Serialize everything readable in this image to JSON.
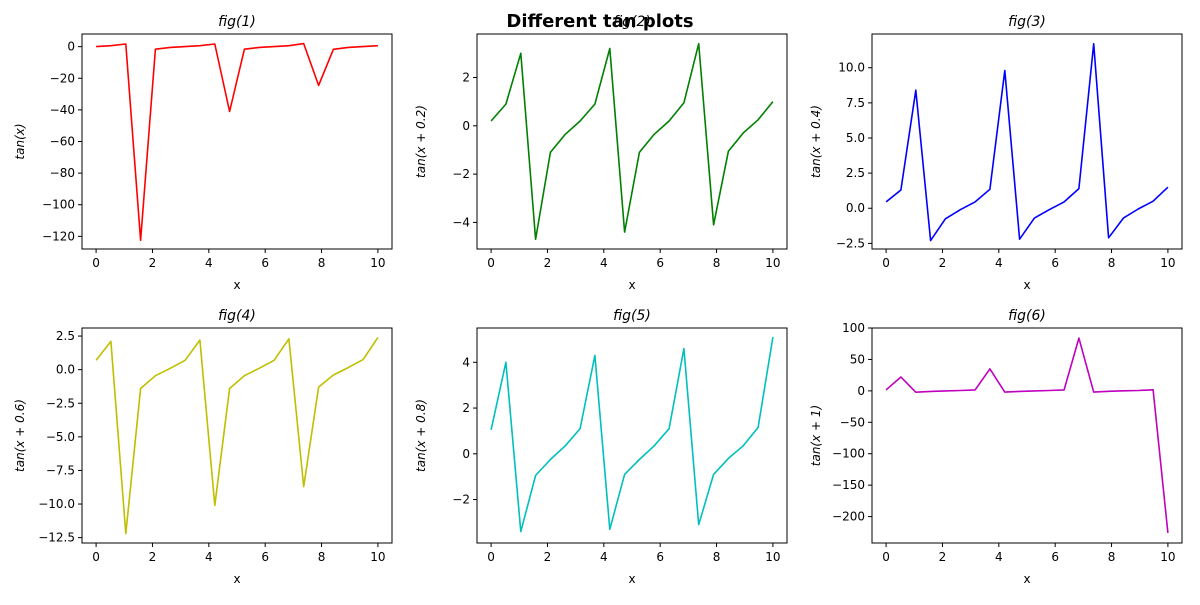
{
  "suptitle": "Different tan plots",
  "chart_data": [
    {
      "type": "line",
      "title": "fig(1)",
      "xlabel": "x",
      "ylabel": "tan(x)",
      "color": "#ff0000",
      "xlim": [
        -0.5,
        10.5
      ],
      "ylim": [
        -128,
        8
      ],
      "xticks": [
        0,
        2,
        4,
        6,
        8,
        10
      ],
      "yticks": [
        0,
        -20,
        -40,
        -60,
        -80,
        -100,
        -120
      ],
      "ytick_labels": [
        "0",
        "−20",
        "−40",
        "−60",
        "−80",
        "−100",
        "−120"
      ],
      "x": [
        0,
        0.526,
        1.053,
        1.579,
        2.105,
        2.632,
        3.158,
        3.684,
        4.211,
        4.737,
        5.263,
        5.789,
        6.316,
        6.842,
        7.368,
        7.895,
        8.421,
        8.947,
        9.474,
        10
      ],
      "y": [
        0,
        0.6,
        1.7,
        -122.5,
        -1.6,
        -0.5,
        0.0,
        0.6,
        1.7,
        -41,
        -1.6,
        -0.5,
        0.0,
        0.6,
        1.9,
        -24.5,
        -1.7,
        -0.5,
        0.0,
        0.6
      ]
    },
    {
      "type": "line",
      "title": "fig(2)",
      "xlabel": "x",
      "ylabel": "tan(x + 0.2)",
      "color": "#008000",
      "xlim": [
        -0.5,
        10.5
      ],
      "ylim": [
        -5.1,
        3.8
      ],
      "xticks": [
        0,
        2,
        4,
        6,
        8,
        10
      ],
      "yticks": [
        2,
        0,
        -2,
        -4
      ],
      "ytick_labels": [
        "2",
        "0",
        "−2",
        "−4"
      ],
      "x": [
        0,
        0.526,
        1.053,
        1.579,
        2.105,
        2.632,
        3.158,
        3.684,
        4.211,
        4.737,
        5.263,
        5.789,
        6.316,
        6.842,
        7.368,
        7.895,
        8.421,
        8.947,
        9.474,
        10
      ],
      "y": [
        0.2,
        0.9,
        3.0,
        -4.7,
        -1.1,
        -0.35,
        0.2,
        0.9,
        3.2,
        -4.4,
        -1.1,
        -0.35,
        0.2,
        0.95,
        3.4,
        -4.1,
        -1.05,
        -0.3,
        0.25,
        1.0
      ]
    },
    {
      "type": "line",
      "title": "fig(3)",
      "xlabel": "x",
      "ylabel": "tan(x + 0.4)",
      "color": "#0000ff",
      "xlim": [
        -0.5,
        10.5
      ],
      "ylim": [
        -2.9,
        12.4
      ],
      "xticks": [
        0,
        2,
        4,
        6,
        8,
        10
      ],
      "yticks": [
        10.0,
        7.5,
        5.0,
        2.5,
        0.0,
        -2.5
      ],
      "ytick_labels": [
        "10.0",
        "7.5",
        "5.0",
        "2.5",
        "0.0",
        "−2.5"
      ],
      "x": [
        0,
        0.526,
        1.053,
        1.579,
        2.105,
        2.632,
        3.158,
        3.684,
        4.211,
        4.737,
        5.263,
        5.789,
        6.316,
        6.842,
        7.368,
        7.895,
        8.421,
        8.947,
        9.474,
        10
      ],
      "y": [
        0.45,
        1.3,
        8.4,
        -2.3,
        -0.75,
        -0.1,
        0.45,
        1.35,
        9.8,
        -2.2,
        -0.7,
        -0.1,
        0.45,
        1.4,
        11.7,
        -2.1,
        -0.7,
        -0.05,
        0.5,
        1.5
      ]
    },
    {
      "type": "line",
      "title": "fig(4)",
      "xlabel": "x",
      "ylabel": "tan(x + 0.6)",
      "color": "#bfbf00",
      "xlim": [
        -0.5,
        10.5
      ],
      "ylim": [
        -12.9,
        3.1
      ],
      "xticks": [
        0,
        2,
        4,
        6,
        8,
        10
      ],
      "yticks": [
        2.5,
        0.0,
        -2.5,
        -5.0,
        -7.5,
        -10.0,
        -12.5
      ],
      "ytick_labels": [
        "2.5",
        "0.0",
        "−2.5",
        "−5.0",
        "−7.5",
        "−10.0",
        "−12.5"
      ],
      "x": [
        0,
        0.526,
        1.053,
        1.579,
        2.105,
        2.632,
        3.158,
        3.684,
        4.211,
        4.737,
        5.263,
        5.789,
        6.316,
        6.842,
        7.368,
        7.895,
        8.421,
        8.947,
        9.474,
        10
      ],
      "y": [
        0.7,
        2.1,
        -12.2,
        -1.4,
        -0.45,
        0.1,
        0.7,
        2.2,
        -10.1,
        -1.4,
        -0.45,
        0.1,
        0.7,
        2.3,
        -8.7,
        -1.3,
        -0.4,
        0.15,
        0.75,
        2.4
      ]
    },
    {
      "type": "line",
      "title": "fig(5)",
      "xlabel": "x",
      "ylabel": "tan(x + 0.8)",
      "color": "#00bfbf",
      "xlim": [
        -0.5,
        10.5
      ],
      "ylim": [
        -3.9,
        5.5
      ],
      "xticks": [
        0,
        2,
        4,
        6,
        8,
        10
      ],
      "yticks": [
        4,
        2,
        0,
        -2
      ],
      "ytick_labels": [
        "4",
        "2",
        "0",
        "−2"
      ],
      "x": [
        0,
        0.526,
        1.053,
        1.579,
        2.105,
        2.632,
        3.158,
        3.684,
        4.211,
        4.737,
        5.263,
        5.789,
        6.316,
        6.842,
        7.368,
        7.895,
        8.421,
        8.947,
        9.474,
        10
      ],
      "y": [
        1.05,
        4.0,
        -3.4,
        -0.95,
        -0.25,
        0.35,
        1.1,
        4.3,
        -3.3,
        -0.9,
        -0.25,
        0.35,
        1.1,
        4.6,
        -3.1,
        -0.9,
        -0.2,
        0.35,
        1.15,
        5.1
      ]
    },
    {
      "type": "line",
      "title": "fig(6)",
      "xlabel": "x",
      "ylabel": "tan(x + 1)",
      "color": "#bf00bf",
      "xlim": [
        -0.5,
        10.5
      ],
      "ylim": [
        -242,
        100
      ],
      "xticks": [
        0,
        2,
        4,
        6,
        8,
        10
      ],
      "yticks": [
        100,
        50,
        0,
        -50,
        -100,
        -150,
        -200
      ],
      "ytick_labels": [
        "100",
        "50",
        "0",
        "−50",
        "−100",
        "−150",
        "−200"
      ],
      "x": [
        0,
        0.526,
        1.053,
        1.579,
        2.105,
        2.632,
        3.158,
        3.684,
        4.211,
        4.737,
        5.263,
        5.789,
        6.316,
        6.842,
        7.368,
        7.895,
        8.421,
        8.947,
        9.474,
        10
      ],
      "y": [
        1.5,
        22,
        -2.1,
        -0.8,
        0,
        0.6,
        1.5,
        35,
        -2.0,
        -0.8,
        0,
        0.6,
        1.6,
        84,
        -1.9,
        -0.7,
        0.05,
        0.6,
        1.7,
        -226
      ]
    }
  ]
}
